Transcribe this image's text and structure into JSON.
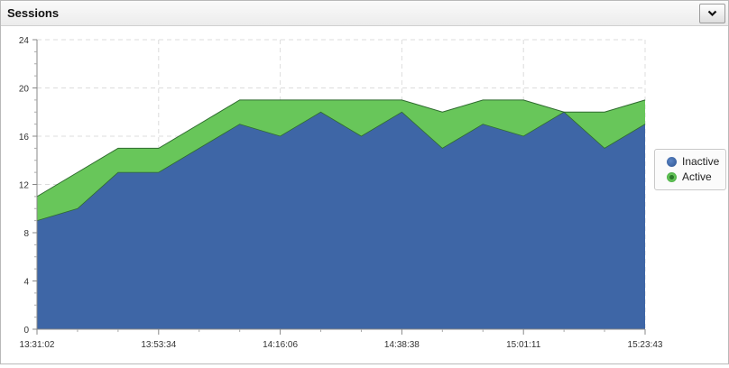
{
  "panel": {
    "title": "Sessions"
  },
  "colors": {
    "inactive": "#3e66a6",
    "inactive_dot": "#2d5491",
    "active": "#68c65a",
    "active_dot": "#3aa23a",
    "grid": "#dcdcdc"
  },
  "chart_data": {
    "type": "area",
    "stacked": true,
    "x": [
      "13:31:02",
      "13:37:45",
      "13:44:28",
      "13:53:34",
      "14:01:00",
      "14:08:45",
      "14:16:06",
      "14:23:20",
      "14:30:40",
      "14:38:38",
      "14:45:50",
      "14:53:10",
      "15:01:11",
      "15:07:30",
      "15:14:40",
      "15:23:43"
    ],
    "x_ticks": [
      "13:31:02",
      "13:53:34",
      "14:16:06",
      "14:38:38",
      "15:01:11",
      "15:23:43"
    ],
    "y_ticks": [
      "0",
      "4",
      "8",
      "12",
      "16",
      "20",
      "24"
    ],
    "ylim": [
      0,
      24
    ],
    "series": [
      {
        "name": "Inactive",
        "values": [
          9,
          10,
          13,
          13,
          15,
          17,
          16,
          18,
          16,
          18,
          15,
          17,
          16,
          18,
          15,
          17
        ]
      },
      {
        "name": "Active",
        "values": [
          2,
          3,
          2,
          2,
          2,
          2,
          3,
          1,
          3,
          1,
          3,
          2,
          3,
          0,
          3,
          2
        ]
      }
    ],
    "grid": true,
    "legend": "right"
  },
  "legend": {
    "items": [
      {
        "label": "Inactive"
      },
      {
        "label": "Active"
      }
    ]
  }
}
